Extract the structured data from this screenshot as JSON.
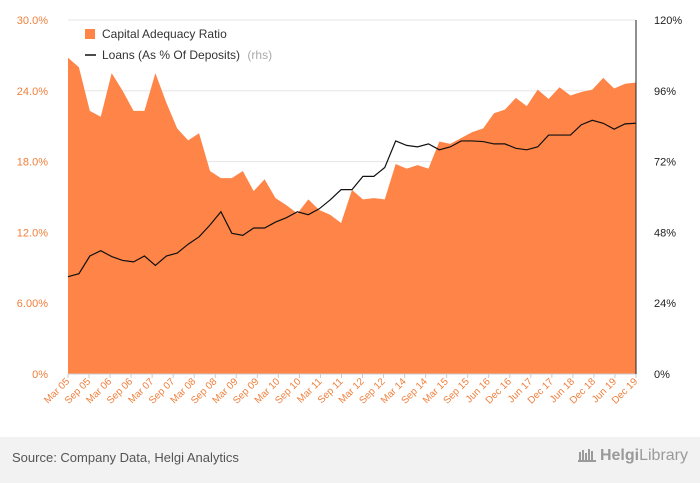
{
  "chart_data": {
    "type": "area",
    "x_tick_labels": [
      "Mar 05",
      "Sep 05",
      "Mar 06",
      "Sep 06",
      "Mar 07",
      "Sep 07",
      "Mar 08",
      "Sep 08",
      "Mar 09",
      "Sep 09",
      "Mar 10",
      "Sep 10",
      "Mar 11",
      "Sep 11",
      "Mar 12",
      "Sep 12",
      "Mar 14",
      "Sep 14",
      "Mar 15",
      "Sep 15",
      "Jun 16",
      "Dec 16",
      "Jun 17",
      "Dec 17",
      "Jun 18",
      "Dec 18",
      "Jun 19",
      "Dec 19"
    ],
    "y_left": {
      "ticks": [
        "0%",
        "6.00%",
        "12.0%",
        "18.0%",
        "24.0%",
        "30.0%"
      ],
      "ylim": [
        0,
        30
      ]
    },
    "y_right": {
      "ticks": [
        "0%",
        "24%",
        "48%",
        "72%",
        "96%",
        "120%"
      ],
      "ylim": [
        0,
        120
      ]
    },
    "series": [
      {
        "name": "Capital Adequacy Ratio",
        "axis": "left",
        "kind": "area",
        "color": "#ff8448",
        "values": [
          26.8,
          26.0,
          22.3,
          21.8,
          25.5,
          24.0,
          22.3,
          22.3,
          25.5,
          23.0,
          20.8,
          19.8,
          20.4,
          17.2,
          16.6,
          16.6,
          17.2,
          15.5,
          16.5,
          14.9,
          14.3,
          13.6,
          14.8,
          13.9,
          13.5,
          12.8,
          15.6,
          14.8,
          14.9,
          14.8,
          17.8,
          17.4,
          17.7,
          17.4,
          19.7,
          19.5,
          20.0,
          20.5,
          20.8,
          22.1,
          22.4,
          23.4,
          22.7,
          24.1,
          23.3,
          24.3,
          23.6,
          23.9,
          24.1,
          25.1,
          24.2,
          24.6,
          24.7
        ]
      },
      {
        "name": "Loans (As % Of Deposits)",
        "axis": "right",
        "kind": "line",
        "color": "#111111",
        "values": [
          33.0,
          34.0,
          40.0,
          41.8,
          39.8,
          38.5,
          38.0,
          40.0,
          36.8,
          40.0,
          41.0,
          44.0,
          46.5,
          50.5,
          55.0,
          47.7,
          47.0,
          49.5,
          49.5,
          51.5,
          53.0,
          55.0,
          54.0,
          56.0,
          59.0,
          62.5,
          62.5,
          67.0,
          67.0,
          70.0,
          79.0,
          77.5,
          77.0,
          78.0,
          76.0,
          77.0,
          79.0,
          79.0,
          78.8,
          78.0,
          78.0,
          76.5,
          76.0,
          77.0,
          81.0,
          81.0,
          81.0,
          84.5,
          86.0,
          85.0,
          83.0,
          84.8,
          85.0
        ]
      }
    ],
    "legend": {
      "placement": "top-left",
      "items": [
        {
          "label": "Capital Adequacy Ratio",
          "suffix": "",
          "marker": "square"
        },
        {
          "label": "Loans (As % Of Deposits)",
          "suffix": "(rhs)",
          "marker": "line"
        }
      ]
    },
    "grid": true
  },
  "footer": {
    "source": "Source: Company Data, Helgi Analytics",
    "brand_a": "Helgi",
    "brand_b": "Library"
  }
}
